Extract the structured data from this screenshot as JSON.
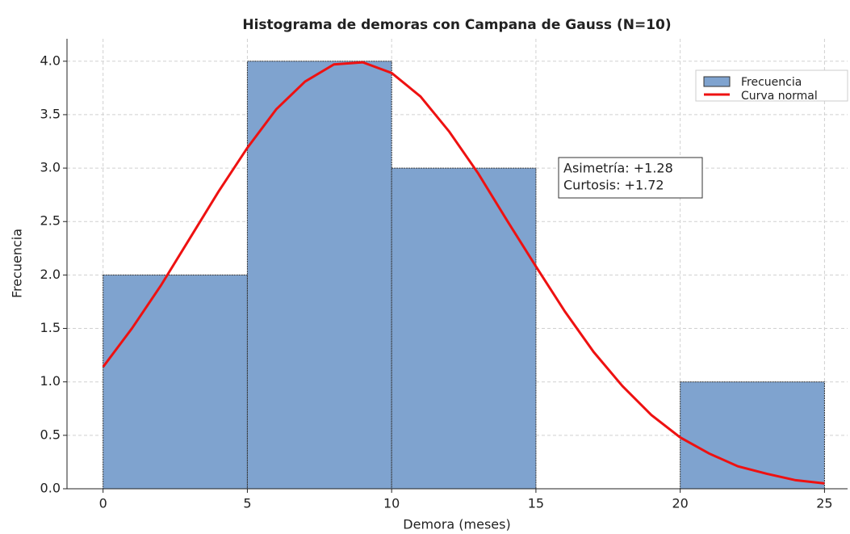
{
  "chart_data": {
    "type": "histogram",
    "title": "Histograma de demoras con Campana de Gauss (N=10)",
    "xlabel": "Demora (meses)",
    "ylabel": "Frecuencia",
    "name": "Frecuencia",
    "color": "#7fa3cf",
    "bins": [
      0,
      5,
      10,
      15,
      20,
      25
    ],
    "values": [
      2,
      4,
      3,
      0,
      1
    ],
    "curve": {
      "name": "Curva normal",
      "color": "#ee1111",
      "x": [
        0,
        1,
        2,
        3,
        4,
        5,
        6,
        7,
        8,
        9,
        10,
        11,
        12,
        13,
        14,
        15,
        16,
        17,
        18,
        19,
        20,
        21,
        22,
        23,
        24,
        25
      ],
      "values": [
        1.14,
        1.5,
        1.9,
        2.34,
        2.78,
        3.19,
        3.55,
        3.81,
        3.97,
        3.99,
        3.89,
        3.67,
        3.34,
        2.95,
        2.51,
        2.08,
        1.66,
        1.28,
        0.96,
        0.69,
        0.48,
        0.33,
        0.21,
        0.14,
        0.08,
        0.05
      ]
    },
    "annotations": [
      "Asimetría: +1.28",
      "Curtosis: +1.72"
    ],
    "xlim": [
      -1.25,
      25.8
    ],
    "ylim": [
      0,
      4.21
    ],
    "xticks": [
      0,
      5,
      10,
      15,
      20,
      25
    ],
    "yticks": [
      {
        "value": 0,
        "label": "0.0"
      },
      {
        "value": 0.5,
        "label": "0.5"
      },
      {
        "value": 1,
        "label": "1.0"
      },
      {
        "value": 1.5,
        "label": "1.5"
      },
      {
        "value": 2,
        "label": "2.0"
      },
      {
        "value": 2.5,
        "label": "2.5"
      },
      {
        "value": 3,
        "label": "3.0"
      },
      {
        "value": 3.5,
        "label": "3.5"
      },
      {
        "value": 4,
        "label": "4.0"
      }
    ],
    "grid": true,
    "legend": "upper right"
  }
}
